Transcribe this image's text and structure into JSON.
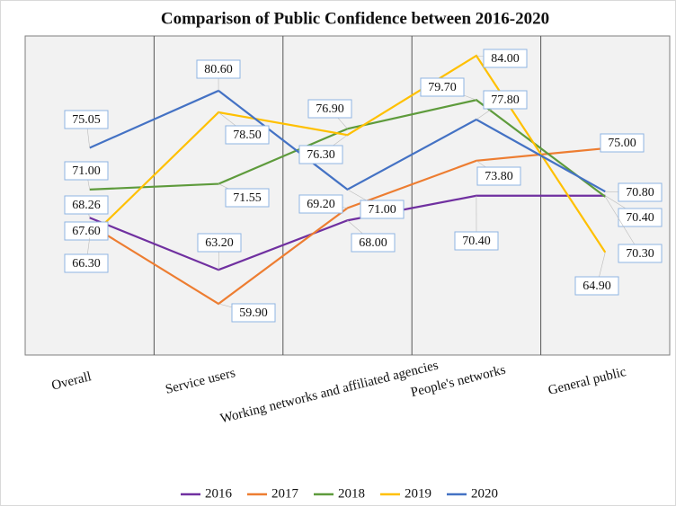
{
  "chart_data": {
    "type": "line",
    "title": "Comparison of Public Confidence between 2016-2020",
    "categories": [
      "Overall",
      "Service users",
      "Working networks and affiliated agencies",
      "People's networks",
      "General public"
    ],
    "series": [
      {
        "name": "2016",
        "color": "#7030a0",
        "values": [
          68.26,
          63.2,
          68.0,
          70.4,
          70.4
        ],
        "value_labels": [
          "68.26",
          "63.20",
          "68.00",
          "70.40",
          "70.40"
        ]
      },
      {
        "name": "2017",
        "color": "#ed7d31",
        "values": [
          67.6,
          59.9,
          69.2,
          73.8,
          75.0
        ],
        "value_labels": [
          "67.60",
          "59.90",
          "69.20",
          "73.80",
          "75.00"
        ]
      },
      {
        "name": "2018",
        "color": "#5e9b3c",
        "values": [
          71.0,
          71.55,
          76.9,
          79.7,
          70.3
        ],
        "value_labels": [
          "71.00",
          "71.55",
          "76.90",
          "79.70",
          "70.30"
        ]
      },
      {
        "name": "2019",
        "color": "#ffc000",
        "values": [
          66.3,
          78.5,
          76.3,
          84.0,
          64.9
        ],
        "value_labels": [
          "66.30",
          "78.50",
          "76.30",
          "84.00",
          "64.90"
        ]
      },
      {
        "name": "2020",
        "color": "#4472c4",
        "values": [
          75.05,
          80.6,
          71.0,
          77.8,
          70.8
        ],
        "value_labels": [
          "75.05",
          "80.60",
          "71.00",
          "77.80",
          "70.80"
        ]
      }
    ]
  }
}
